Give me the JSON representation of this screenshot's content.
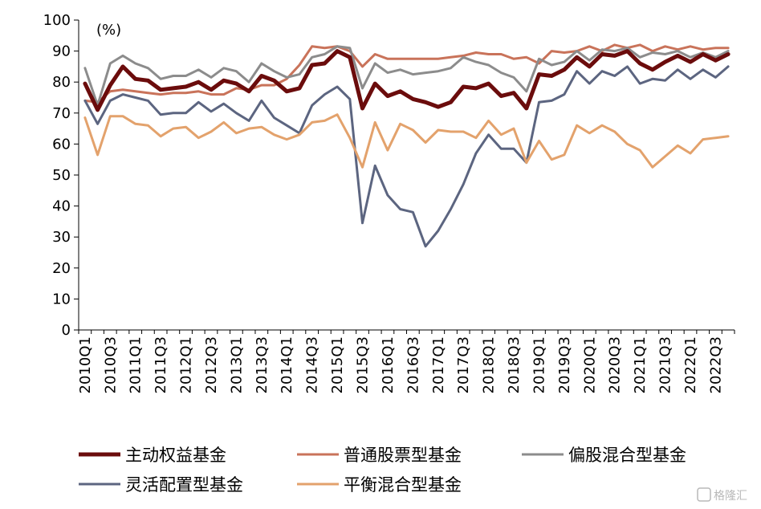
{
  "chart_data": {
    "type": "line",
    "unit_label": "(%)",
    "ylim": [
      0,
      100
    ],
    "yticks": [
      0,
      10,
      20,
      30,
      40,
      50,
      60,
      70,
      80,
      90,
      100
    ],
    "grid": false,
    "legend_position": "bottom",
    "x": [
      "2010Q1",
      "2010Q2",
      "2010Q3",
      "2010Q4",
      "2011Q1",
      "2011Q2",
      "2011Q3",
      "2011Q4",
      "2012Q1",
      "2012Q2",
      "2012Q3",
      "2012Q4",
      "2013Q1",
      "2013Q2",
      "2013Q3",
      "2013Q4",
      "2014Q1",
      "2014Q2",
      "2014Q3",
      "2014Q4",
      "2015Q1",
      "2015Q2",
      "2015Q3",
      "2015Q4",
      "2016Q1",
      "2016Q2",
      "2016Q3",
      "2016Q4",
      "2017Q1",
      "2017Q2",
      "2017Q3",
      "2017Q4",
      "2018Q1",
      "2018Q2",
      "2018Q3",
      "2018Q4",
      "2019Q1",
      "2019Q2",
      "2019Q3",
      "2019Q4",
      "2020Q1",
      "2020Q2",
      "2020Q3",
      "2020Q4",
      "2021Q1",
      "2021Q2",
      "2021Q3",
      "2021Q4",
      "2022Q1",
      "2022Q2",
      "2022Q3",
      "2022Q4"
    ],
    "xtick_labels": [
      "2010Q1",
      "2010Q3",
      "2011Q1",
      "2011Q3",
      "2012Q1",
      "2012Q3",
      "2013Q1",
      "2013Q3",
      "2014Q1",
      "2014Q3",
      "2015Q1",
      "2015Q3",
      "2016Q1",
      "2016Q3",
      "2017Q1",
      "2017Q3",
      "2018Q1",
      "2018Q3",
      "2019Q1",
      "2019Q3",
      "2020Q1",
      "2020Q3",
      "2021Q1",
      "2021Q3",
      "2022Q1",
      "2022Q3"
    ],
    "series": [
      {
        "name": "主动权益基金",
        "color": "#6b0c0c",
        "width": 5,
        "values": [
          79.5,
          71,
          79,
          85,
          81,
          80.5,
          77.5,
          78,
          78.5,
          80,
          77.5,
          80.5,
          79.5,
          77,
          82,
          80.5,
          77,
          78,
          85.5,
          86,
          90,
          88,
          71.5,
          79.5,
          75.5,
          77,
          74.5,
          73.5,
          72,
          73.5,
          78.5,
          78,
          79.5,
          75.5,
          76.5,
          71.5,
          82.5,
          82,
          84,
          88,
          85,
          89,
          88.5,
          90,
          86,
          84,
          86.5,
          88.5,
          86.5,
          89,
          87,
          89
        ]
      },
      {
        "name": "普通股票型基金",
        "color": "#c9735a",
        "width": 3,
        "values": [
          74,
          73.5,
          77,
          77.5,
          77,
          76.5,
          76,
          76.5,
          76.5,
          77,
          76,
          76,
          78,
          77.5,
          79,
          79,
          81,
          85.5,
          91.5,
          91,
          91.5,
          90,
          85,
          89,
          87.5,
          87.5,
          87.5,
          87.5,
          87.5,
          88,
          88.5,
          89.5,
          89,
          89,
          87.5,
          88,
          86,
          90,
          89.5,
          90,
          91.5,
          90,
          92,
          91,
          92,
          90,
          91.5,
          90.5,
          91.5,
          90.5,
          91,
          91
        ]
      },
      {
        "name": "偏股混合型基金",
        "color": "#8c8c8c",
        "width": 3,
        "values": [
          84.5,
          72.5,
          86,
          88.5,
          86,
          84.5,
          81,
          82,
          82,
          84,
          81.5,
          84.5,
          83.5,
          80,
          86,
          83.5,
          81.5,
          82.5,
          88,
          89,
          91.5,
          91,
          78,
          86,
          83,
          84,
          82.5,
          83,
          83.5,
          84.5,
          88,
          86.5,
          85.5,
          83,
          81.5,
          77,
          87.5,
          85.5,
          86.5,
          90,
          87,
          90.5,
          90,
          91,
          88,
          89.5,
          89,
          90,
          88,
          89.5,
          88,
          90
        ]
      },
      {
        "name": "灵活配置型基金",
        "color": "#5c6580",
        "width": 3,
        "values": [
          74,
          66.5,
          74,
          76,
          75,
          74,
          69.5,
          70,
          70,
          73.5,
          70.5,
          73,
          70,
          67.5,
          74,
          68.5,
          66,
          63.5,
          72.5,
          76,
          78.5,
          74.5,
          34.5,
          53,
          43.5,
          39,
          38,
          27,
          32,
          39,
          47,
          57,
          63,
          58.5,
          58.5,
          54,
          73.5,
          74,
          76,
          83.5,
          79.5,
          83.5,
          82,
          85,
          79.5,
          81,
          80.5,
          84,
          81,
          84,
          81.5,
          85
        ]
      },
      {
        "name": "平衡混合型基金",
        "color": "#e3a26c",
        "width": 3,
        "values": [
          68.5,
          56.5,
          69,
          69,
          66.5,
          66,
          62.5,
          65,
          65.5,
          62,
          64,
          67,
          63.5,
          65,
          65.5,
          63,
          61.5,
          63,
          67,
          67.5,
          69.5,
          62,
          52.5,
          67,
          58,
          66.5,
          64.5,
          60.5,
          64.5,
          64,
          64,
          62,
          67.5,
          63,
          65,
          54,
          61,
          55,
          56.5,
          66,
          63.5,
          66,
          64,
          60,
          58,
          52.5,
          56,
          59.5,
          57,
          61.5,
          62,
          62.5
        ]
      }
    ]
  },
  "watermark": {
    "label": "格隆汇"
  }
}
